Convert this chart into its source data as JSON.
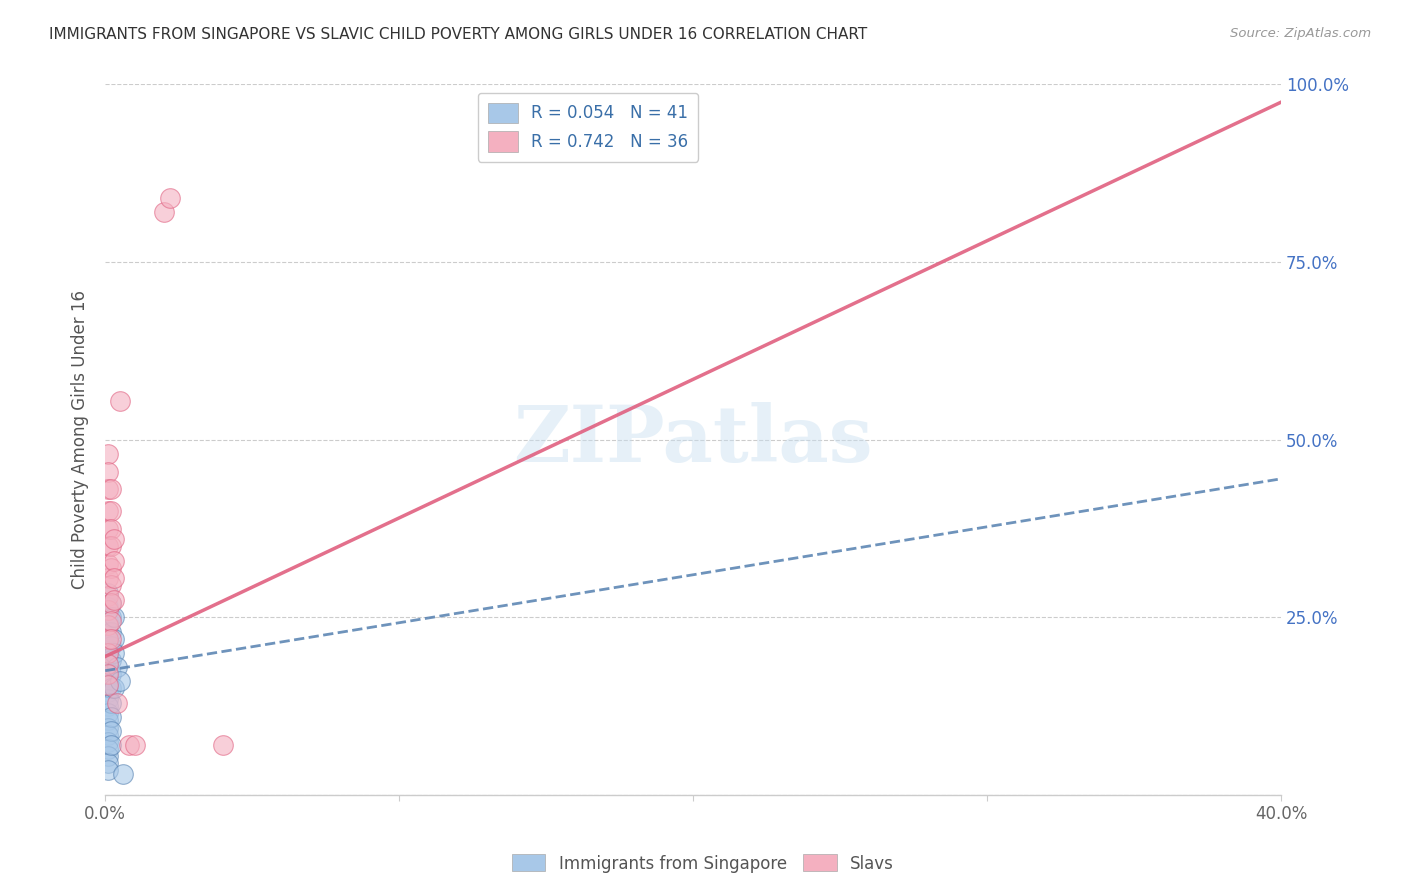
{
  "title": "IMMIGRANTS FROM SINGAPORE VS SLAVIC CHILD POVERTY AMONG GIRLS UNDER 16 CORRELATION CHART",
  "source": "Source: ZipAtlas.com",
  "ylabel": "Child Poverty Among Girls Under 16",
  "watermark": "ZIPatlas",
  "legend_blue_R": "0.054",
  "legend_blue_N": "41",
  "legend_pink_R": "0.742",
  "legend_pink_N": "36",
  "blue_color": "#a8c8e8",
  "pink_color": "#f4b0c0",
  "blue_line_color": "#5580b0",
  "pink_line_color": "#e06080",
  "blue_scatter": [
    [
      0.001,
      0.285
    ],
    [
      0.001,
      0.265
    ],
    [
      0.001,
      0.245
    ],
    [
      0.001,
      0.23
    ],
    [
      0.001,
      0.215
    ],
    [
      0.001,
      0.205
    ],
    [
      0.001,
      0.195
    ],
    [
      0.001,
      0.185
    ],
    [
      0.001,
      0.175
    ],
    [
      0.001,
      0.165
    ],
    [
      0.001,
      0.155
    ],
    [
      0.001,
      0.145
    ],
    [
      0.001,
      0.135
    ],
    [
      0.001,
      0.125
    ],
    [
      0.001,
      0.115
    ],
    [
      0.001,
      0.105
    ],
    [
      0.001,
      0.095
    ],
    [
      0.001,
      0.085
    ],
    [
      0.001,
      0.075
    ],
    [
      0.001,
      0.065
    ],
    [
      0.001,
      0.055
    ],
    [
      0.001,
      0.045
    ],
    [
      0.001,
      0.035
    ],
    [
      0.002,
      0.27
    ],
    [
      0.002,
      0.25
    ],
    [
      0.002,
      0.23
    ],
    [
      0.002,
      0.21
    ],
    [
      0.002,
      0.19
    ],
    [
      0.002,
      0.17
    ],
    [
      0.002,
      0.15
    ],
    [
      0.002,
      0.13
    ],
    [
      0.002,
      0.11
    ],
    [
      0.002,
      0.09
    ],
    [
      0.002,
      0.07
    ],
    [
      0.003,
      0.25
    ],
    [
      0.003,
      0.22
    ],
    [
      0.003,
      0.2
    ],
    [
      0.003,
      0.15
    ],
    [
      0.004,
      0.18
    ],
    [
      0.005,
      0.16
    ],
    [
      0.006,
      0.03
    ]
  ],
  "pink_scatter": [
    [
      0.001,
      0.48
    ],
    [
      0.001,
      0.455
    ],
    [
      0.001,
      0.43
    ],
    [
      0.001,
      0.4
    ],
    [
      0.001,
      0.375
    ],
    [
      0.001,
      0.35
    ],
    [
      0.001,
      0.325
    ],
    [
      0.001,
      0.305
    ],
    [
      0.001,
      0.28
    ],
    [
      0.001,
      0.26
    ],
    [
      0.001,
      0.24
    ],
    [
      0.001,
      0.22
    ],
    [
      0.001,
      0.2
    ],
    [
      0.001,
      0.185
    ],
    [
      0.001,
      0.17
    ],
    [
      0.001,
      0.155
    ],
    [
      0.002,
      0.43
    ],
    [
      0.002,
      0.4
    ],
    [
      0.002,
      0.375
    ],
    [
      0.002,
      0.35
    ],
    [
      0.002,
      0.32
    ],
    [
      0.002,
      0.295
    ],
    [
      0.002,
      0.27
    ],
    [
      0.002,
      0.245
    ],
    [
      0.002,
      0.22
    ],
    [
      0.003,
      0.36
    ],
    [
      0.003,
      0.33
    ],
    [
      0.003,
      0.305
    ],
    [
      0.003,
      0.275
    ],
    [
      0.004,
      0.13
    ],
    [
      0.005,
      0.555
    ],
    [
      0.008,
      0.07
    ],
    [
      0.01,
      0.07
    ],
    [
      0.02,
      0.82
    ],
    [
      0.04,
      0.07
    ],
    [
      0.022,
      0.84
    ]
  ],
  "blue_line": [
    [
      0.0,
      0.175
    ],
    [
      0.4,
      0.445
    ]
  ],
  "pink_line": [
    [
      0.0,
      0.195
    ],
    [
      0.4,
      0.975
    ]
  ],
  "xlim": [
    0,
    0.4
  ],
  "ylim": [
    0,
    1.0
  ],
  "yticks": [
    0.0,
    0.25,
    0.5,
    0.75,
    1.0
  ],
  "right_ytick_labels": [
    "",
    "25.0%",
    "50.0%",
    "75.0%",
    "100.0%"
  ],
  "xticks": [
    0.0,
    0.1,
    0.2,
    0.3,
    0.4
  ],
  "xtick_labels": [
    "0.0%",
    "",
    "",
    "",
    "40.0%"
  ]
}
